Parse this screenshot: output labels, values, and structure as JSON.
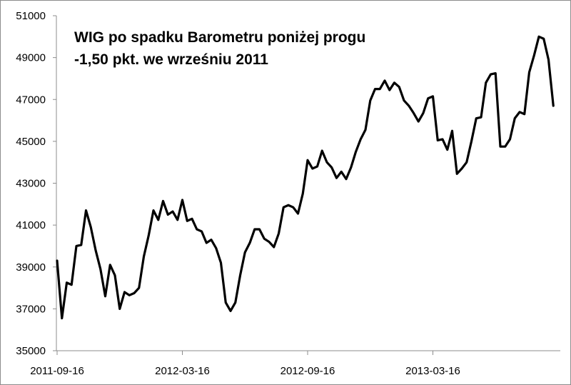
{
  "chart_data": {
    "type": "line",
    "title_lines": [
      "WIG po spadku Barometru poniżej progu",
      "-1,50 pkt. we wrześniu 2011"
    ],
    "xlabel": "",
    "ylabel": "",
    "ylim": [
      35000,
      51000
    ],
    "y_ticks": [
      "35000",
      "37000",
      "39000",
      "41000",
      "43000",
      "45000",
      "47000",
      "49000",
      "51000"
    ],
    "x_tick_labels": [
      {
        "label": "2011-09-16",
        "index": 0
      },
      {
        "label": "2012-03-16",
        "index": 26
      },
      {
        "label": "2012-09-16",
        "index": 52
      },
      {
        "label": "2013-03-16",
        "index": 78
      }
    ],
    "grid": false,
    "legend": "none",
    "series": [
      {
        "color": "#000000",
        "values": [
          39300,
          36550,
          38250,
          38150,
          40000,
          40050,
          41700,
          40900,
          39800,
          38900,
          37600,
          39100,
          38600,
          37000,
          37800,
          37650,
          37750,
          38000,
          39500,
          40500,
          41700,
          41250,
          42150,
          41500,
          41650,
          41250,
          42200,
          41200,
          41300,
          40800,
          40700,
          40150,
          40300,
          39900,
          39200,
          37300,
          36900,
          37300,
          38600,
          39700,
          40150,
          40800,
          40800,
          40350,
          40200,
          39950,
          40600,
          41850,
          41950,
          41850,
          41550,
          42500,
          44100,
          43700,
          43800,
          44550,
          44000,
          43750,
          43250,
          43550,
          43200,
          43750,
          44500,
          45100,
          45550,
          46950,
          47500,
          47500,
          47900,
          47450,
          47800,
          47600,
          46950,
          46700,
          46350,
          45950,
          46350,
          47050,
          47150,
          45050,
          45100,
          44600,
          45500,
          43450,
          43700,
          44000,
          45000,
          46100,
          46150,
          47800,
          48200,
          48250,
          44750,
          44750,
          45100,
          46100,
          46400,
          46300,
          48300,
          49100,
          50000,
          49900,
          48900,
          46700
        ]
      }
    ]
  }
}
